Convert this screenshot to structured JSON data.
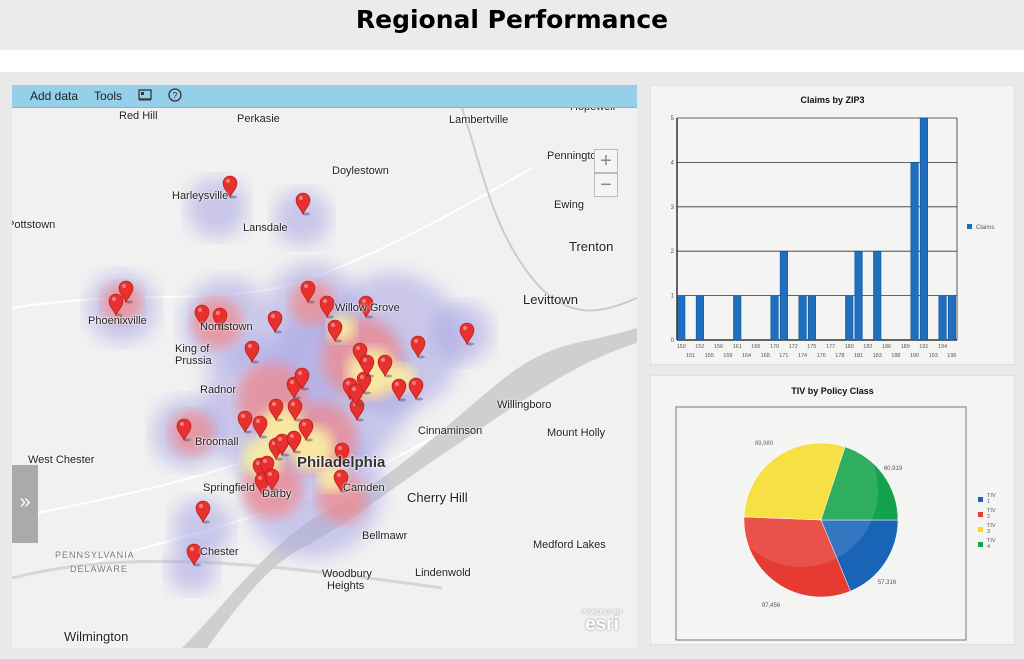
{
  "header": {
    "title": "Regional Performance"
  },
  "toolbar": {
    "add_data": "Add data",
    "tools": "Tools",
    "basemap_icon": "basemap-gallery-icon",
    "help_icon": "help-icon"
  },
  "map": {
    "zoom_in": "+",
    "zoom_out": "−",
    "expand": "»",
    "attribution": {
      "powered": "POWERED BY",
      "logo": "esri"
    },
    "places": [
      "Red Hill",
      "Perkasie",
      "Lambertville",
      "Hopewell",
      "Pennington",
      "Doylestown",
      "Harleysville",
      "Ewing",
      "Lansdale",
      "Pottstown",
      "Trenton",
      "Levittown",
      "Phoenixville",
      "Willow Grove",
      "Norristown",
      "King of",
      "Prussia",
      "Radnor",
      "Willingboro",
      "Broomall",
      "Cinnaminson",
      "Mount Holly",
      "West Chester",
      "Philadelphia",
      "Springfield",
      "Camden",
      "Darby",
      "Cherry Hill",
      "Bellmawr",
      "Chester",
      "Medford Lakes",
      "PENNSYLVANIA",
      "DELAWARE",
      "Woodbury",
      "Heights",
      "Lindenwold",
      "Wilmington"
    ],
    "marker_color": "#e8312f"
  },
  "chart_data": [
    {
      "type": "bar",
      "title": "Claims by ZIP3",
      "categories": [
        "150",
        "151",
        "152",
        "155",
        "156",
        "159",
        "161",
        "164",
        "165",
        "168",
        "170",
        "171",
        "172",
        "174",
        "175",
        "176",
        "177",
        "178",
        "180",
        "181",
        "182",
        "183",
        "186",
        "188",
        "189",
        "190",
        "191",
        "193",
        "194",
        "196"
      ],
      "series": [
        {
          "name": "Claims",
          "values": [
            1,
            0,
            1,
            0,
            0,
            0,
            1,
            0,
            0,
            0,
            1,
            2,
            0,
            1,
            1,
            0,
            0,
            0,
            1,
            2,
            0,
            2,
            0,
            0,
            0,
            4,
            5,
            0,
            1,
            1
          ],
          "color": "#1f6fc0"
        }
      ],
      "yticks": [
        "0",
        "1",
        "2",
        "3",
        "4",
        "5"
      ],
      "ylim": [
        0,
        5
      ],
      "grid": true,
      "legend": "right"
    },
    {
      "type": "pie",
      "title": "TIV by Policy Class",
      "slices": [
        {
          "label": "TIV 1",
          "value": 57316,
          "display": "57,316",
          "color": "#1a64b8"
        },
        {
          "label": "TIV 2",
          "value": 97456,
          "display": "97,456",
          "color": "#e63a33"
        },
        {
          "label": "TIV 3",
          "value": 89980,
          "display": "89,980",
          "color": "#f6dc2a"
        },
        {
          "label": "TIV 4",
          "value": 60919,
          "display": "60,919",
          "color": "#13a34a"
        }
      ],
      "legend": "right"
    }
  ]
}
